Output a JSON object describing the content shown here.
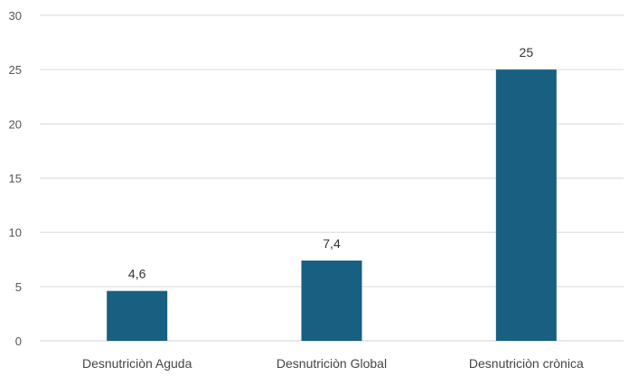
{
  "chart_data": {
    "type": "bar",
    "categories": [
      "Desnutriciòn Aguda",
      "Desnutriciòn Global",
      "Desnutriciòn crònica"
    ],
    "values": [
      4.6,
      7.4,
      25
    ],
    "data_labels": [
      "4,6",
      "7,4",
      "25"
    ],
    "y_ticks": [
      0,
      5,
      10,
      15,
      20,
      25,
      30
    ],
    "ylim": [
      0,
      30
    ],
    "grid": true,
    "bar_color": "#185f82",
    "grid_color": "#d9d9d9"
  }
}
